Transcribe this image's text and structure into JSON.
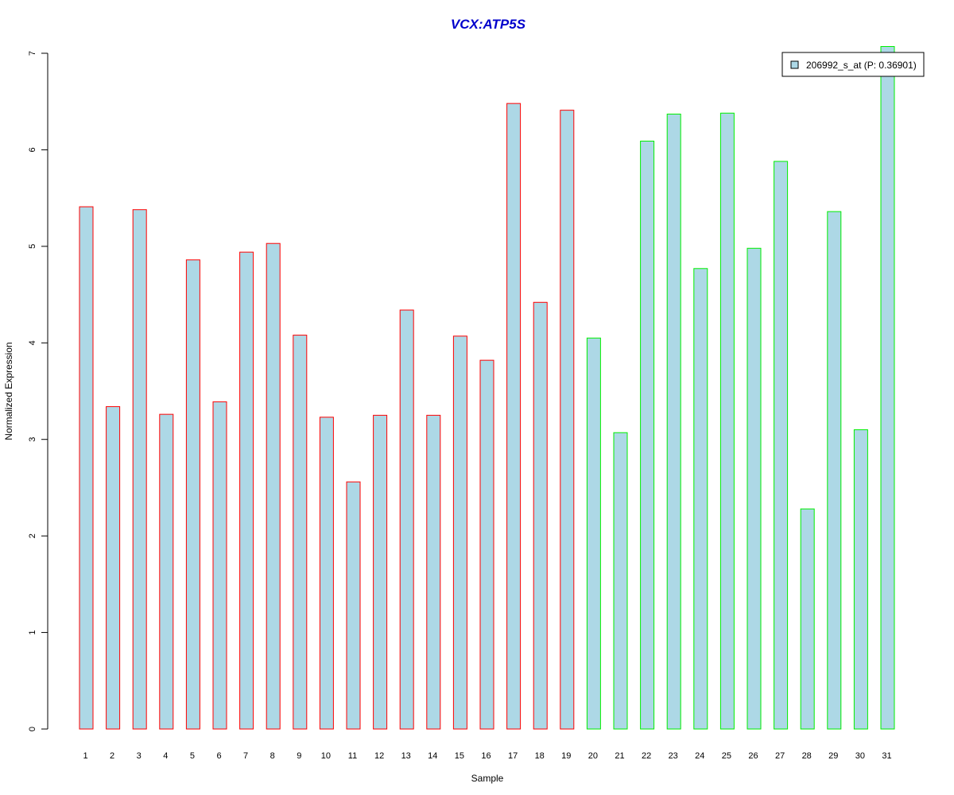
{
  "chart_data": {
    "type": "bar",
    "title": "VCX:ATP5S",
    "xlabel": "Sample",
    "ylabel": "Normalized Expression",
    "ylim": [
      0,
      7
    ],
    "yticks": [
      "0",
      "1",
      "2",
      "3",
      "4",
      "5",
      "6",
      "7"
    ],
    "grid": false,
    "legend_position": "top-right",
    "categories": [
      "1",
      "2",
      "3",
      "4",
      "5",
      "6",
      "7",
      "8",
      "9",
      "10",
      "11",
      "12",
      "13",
      "14",
      "15",
      "16",
      "17",
      "18",
      "19",
      "20",
      "21",
      "22",
      "23",
      "24",
      "25",
      "26",
      "27",
      "28",
      "29",
      "30",
      "31"
    ],
    "series": [
      {
        "name": "206992_s_at (P: 0.36901)",
        "values": [
          5.41,
          3.34,
          5.38,
          3.26,
          4.86,
          3.39,
          4.94,
          5.03,
          4.08,
          3.23,
          2.56,
          3.25,
          4.34,
          3.25,
          4.07,
          3.82,
          6.48,
          4.42,
          6.41,
          4.05,
          3.07,
          6.09,
          6.37,
          4.77,
          6.38,
          4.98,
          5.88,
          2.28,
          5.36,
          3.1,
          7.07
        ],
        "fill_color": "#add8e6"
      }
    ],
    "groups": [
      {
        "samples": "1-19",
        "border_color": "#ff0000"
      },
      {
        "samples": "20-31",
        "border_color": "#00ee00"
      }
    ]
  }
}
